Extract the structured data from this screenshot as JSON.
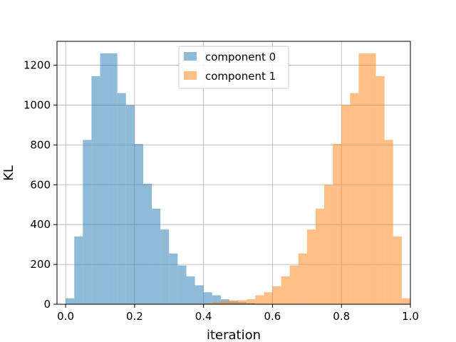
{
  "chart_data": {
    "type": "bar",
    "title": "",
    "xlabel": "iteration",
    "ylabel": "KL",
    "xlim": [
      -0.025,
      1.0
    ],
    "ylim": [
      0,
      1320
    ],
    "xticks": [
      0.0,
      0.2,
      0.4,
      0.6,
      0.8,
      1.0
    ],
    "xtick_labels": [
      "0.0",
      "0.2",
      "0.4",
      "0.6",
      "0.8",
      "1.0"
    ],
    "yticks": [
      0,
      200,
      400,
      600,
      800,
      1000,
      1200
    ],
    "ytick_labels": [
      "0",
      "200",
      "400",
      "600",
      "800",
      "1000",
      "1200"
    ],
    "grid": true,
    "legend_position": "top-center",
    "bin_width": 0.025,
    "series": [
      {
        "name": "component 0",
        "color": "#1f77b4",
        "alpha": 0.5,
        "bins": [
          0.0125,
          0.0375,
          0.0625,
          0.0875,
          0.1125,
          0.1375,
          0.1625,
          0.1875,
          0.2125,
          0.2375,
          0.2625,
          0.2875,
          0.3125,
          0.3375,
          0.3625,
          0.3875,
          0.4125,
          0.4375,
          0.4625,
          0.4875,
          0.5125,
          0.5375
        ],
        "counts": [
          30,
          340,
          825,
          1145,
          1260,
          1260,
          1060,
          1000,
          805,
          605,
          480,
          375,
          255,
          195,
          140,
          95,
          60,
          45,
          25,
          15,
          10,
          5
        ]
      },
      {
        "name": "component 1",
        "color": "#ff7f0e",
        "alpha": 0.5,
        "bins": [
          0.4125,
          0.4375,
          0.4625,
          0.4875,
          0.5125,
          0.5375,
          0.5625,
          0.5875,
          0.6125,
          0.6375,
          0.6625,
          0.6875,
          0.7125,
          0.7375,
          0.7625,
          0.7875,
          0.8125,
          0.8375,
          0.8625,
          0.8875,
          0.9125,
          0.9375,
          0.9625
        ],
        "counts": [
          5,
          10,
          15,
          20,
          20,
          25,
          45,
          60,
          90,
          140,
          195,
          255,
          375,
          480,
          600,
          805,
          1000,
          1060,
          1260,
          1260,
          1145,
          825,
          340
        ]
      },
      {
        "name": "component 1",
        "color": "#ff7f0e",
        "alpha": 0.5,
        "legend": false,
        "bins": [
          0.9875
        ],
        "counts": [
          30
        ]
      }
    ]
  }
}
